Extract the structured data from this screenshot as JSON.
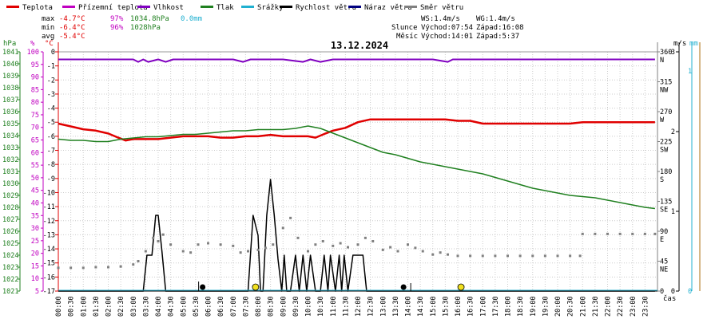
{
  "title": "13.12.2024",
  "legend": [
    {
      "label": "Teplota",
      "color": "#e00000"
    },
    {
      "label": "Přízemní teplota",
      "color": "#c000c0"
    },
    {
      "label": "Vlhkost",
      "color": "#8000c0"
    },
    {
      "label": "Tlak",
      "color": "#208020"
    },
    {
      "label": "Srážky",
      "color": "#20b0d0"
    },
    {
      "label": "Rychlost větru",
      "color": "#000000"
    },
    {
      "label": "Náraz větru",
      "color": "#000080"
    },
    {
      "label": "Směr větru",
      "color": "#808080"
    }
  ],
  "stats": {
    "max": {
      "label": "max",
      "temp": "-4.7°C",
      "hum": "97%",
      "press": "1034.8hPa",
      "rain": "0.0mm"
    },
    "min": {
      "label": "min",
      "temp": "-6.4°C",
      "hum": "96%",
      "press": "1028hPa"
    },
    "avg": {
      "label": "avg",
      "temp": "-5.4°C"
    }
  },
  "info": {
    "ws": "WS:1.4m/s",
    "wg": "WG:1.4m/s",
    "sun_label": "Slunce",
    "sunrise": "Východ:07:54",
    "sunset": "Západ:16:08",
    "moon_label": "Měsíc",
    "moonrise": "Východ:14:01",
    "moonset": "Západ:5:37"
  },
  "axis_units": {
    "hpa": "hPa",
    "pct": "%",
    "degc": "°C",
    "ms": "m/s",
    "mm": "mm",
    "xlabel": "čas"
  },
  "colors": {
    "temp": "#e00000",
    "hum": "#8000c0",
    "press": "#208020",
    "wind": "#000000",
    "dir": "#808080",
    "pressAxis": "#208020",
    "humAxis": "#c000c0",
    "tempAxis": "#e00000",
    "rain": "#20b0d0",
    "gust": "#000080",
    "tan": "#c8a060"
  },
  "chart_data": {
    "type": "line",
    "x_unit": "hour",
    "temp_ticks": [
      "0",
      "-1",
      "-2",
      "-3",
      "-4",
      "-5",
      "-6",
      "-7",
      "-8",
      "-9",
      "-10",
      "-11",
      "-12",
      "-13",
      "-14",
      "-15",
      "-16",
      "-17"
    ],
    "hum_ticks": [
      "100",
      "95",
      "90",
      "85",
      "80",
      "75",
      "70",
      "65",
      "60",
      "55",
      "50",
      "45",
      "40",
      "35",
      "30",
      "25",
      "20",
      "15",
      "10",
      "5"
    ],
    "press_ticks": [
      "1041",
      "1040",
      "1039",
      "1038",
      "1037",
      "1036",
      "1035",
      "1034",
      "1033",
      "1032",
      "1031",
      "1030",
      "1029",
      "1028",
      "1027",
      "1026",
      "1025",
      "1024",
      "1023",
      "1022",
      "1021"
    ],
    "dir_ticks": [
      {
        "deg": "360",
        "label": "N",
        "v": 360
      },
      {
        "deg": "315",
        "label": "NW",
        "v": 315
      },
      {
        "deg": "270",
        "label": "W",
        "v": 270
      },
      {
        "deg": "225",
        "label": "SW",
        "v": 225
      },
      {
        "deg": "180",
        "label": "S",
        "v": 180
      },
      {
        "deg": "135",
        "label": "SE",
        "v": 135
      },
      {
        "deg": "90",
        "label": "E",
        "v": 90
      },
      {
        "deg": "45",
        "label": "NE",
        "v": 45
      },
      {
        "deg": "0",
        "label": "",
        "v": 0
      }
    ],
    "ms_ticks": [
      {
        "label": "3",
        "v": 3
      },
      {
        "label": "2",
        "v": 2
      },
      {
        "label": "1",
        "v": 1
      },
      {
        "label": "0",
        "v": 0
      }
    ],
    "mm_ticks": [
      {
        "label": "1",
        "v": 1
      },
      {
        "label": "0",
        "v": 0
      }
    ],
    "x_tick_labels": [
      "00:00",
      "00:30",
      "01:00",
      "01:30",
      "02:00",
      "02:30",
      "03:00",
      "03:30",
      "04:00",
      "04:30",
      "05:00",
      "05:30",
      "06:00",
      "06:30",
      "07:00",
      "07:30",
      "08:00",
      "08:30",
      "09:00",
      "09:30",
      "10:00",
      "10:30",
      "11:00",
      "11:30",
      "12:00",
      "12:30",
      "13:00",
      "13:30",
      "14:00",
      "14:30",
      "15:00",
      "15:30",
      "16:00",
      "16:30",
      "17:00",
      "17:30",
      "18:00",
      "18:30",
      "19:00",
      "19:30",
      "20:00",
      "20:30",
      "21:00",
      "21:30",
      "22:00",
      "22:30",
      "23:00",
      "23:30"
    ],
    "series": [
      {
        "name": "Teplota",
        "key": "temp",
        "x": [
          0,
          0.5,
          1,
          1.5,
          2,
          2.4,
          2.7,
          3,
          3.5,
          4,
          4.5,
          5,
          5.5,
          6,
          6.5,
          7,
          7.5,
          8,
          8.5,
          9,
          9.5,
          10,
          10.3,
          10.7,
          11,
          11.5,
          12,
          12.5,
          13,
          13.5,
          14,
          14.5,
          15,
          15.5,
          16,
          16.5,
          17,
          17.5,
          18,
          18.5,
          19,
          19.5,
          20,
          20.5,
          21,
          21.5,
          22,
          22.5,
          23,
          23.5,
          23.9
        ],
        "y": [
          -5.1,
          -5.3,
          -5.5,
          -5.6,
          -5.8,
          -6.1,
          -6.3,
          -6.2,
          -6.2,
          -6.2,
          -6.1,
          -6.0,
          -6.0,
          -6.0,
          -6.1,
          -6.1,
          -6.0,
          -6.0,
          -5.9,
          -6.0,
          -6.0,
          -6.0,
          -6.1,
          -5.8,
          -5.6,
          -5.4,
          -5.0,
          -4.8,
          -4.8,
          -4.8,
          -4.8,
          -4.8,
          -4.8,
          -4.8,
          -4.9,
          -4.9,
          -5.1,
          -5.1,
          -5.1,
          -5.1,
          -5.1,
          -5.1,
          -5.1,
          -5.1,
          -5.0,
          -5.0,
          -5.0,
          -5.0,
          -5.0,
          -5.0,
          -5.0
        ]
      },
      {
        "name": "Vlhkost",
        "key": "hum",
        "x": [
          0,
          1,
          2,
          3,
          3.2,
          3.4,
          3.6,
          4,
          4.3,
          4.6,
          5,
          6,
          7,
          7.4,
          7.7,
          8,
          9,
          9.8,
          10.1,
          10.5,
          11,
          12,
          13,
          14,
          15,
          15.6,
          15.8,
          16,
          17,
          18,
          19,
          20,
          21,
          22,
          23,
          23.9
        ],
        "y": [
          97,
          97,
          97,
          97,
          96,
          97,
          96,
          97,
          96,
          97,
          97,
          97,
          97,
          96,
          97,
          97,
          97,
          96,
          97,
          96,
          97,
          97,
          97,
          97,
          97,
          96,
          97,
          97,
          97,
          97,
          97,
          97,
          97,
          97,
          97,
          97
        ]
      },
      {
        "name": "Tlak",
        "key": "press",
        "x": [
          0,
          0.5,
          1,
          1.5,
          2,
          2.5,
          3,
          3.5,
          4,
          4.5,
          5,
          5.5,
          6,
          6.5,
          7,
          7.5,
          8,
          8.5,
          9,
          9.5,
          10,
          10.5,
          11,
          11.5,
          12,
          12.5,
          13,
          13.5,
          14,
          14.5,
          15,
          15.5,
          16,
          16.5,
          17,
          17.5,
          18,
          18.5,
          19,
          19.5,
          20,
          20.5,
          21,
          21.5,
          22,
          22.5,
          23,
          23.5,
          23.9
        ],
        "y": [
          1033.7,
          1033.6,
          1033.6,
          1033.5,
          1033.5,
          1033.7,
          1033.8,
          1033.9,
          1033.9,
          1034.0,
          1034.1,
          1034.1,
          1034.2,
          1034.3,
          1034.4,
          1034.4,
          1034.5,
          1034.5,
          1034.5,
          1034.6,
          1034.8,
          1034.6,
          1034.2,
          1033.8,
          1033.4,
          1033.0,
          1032.6,
          1032.4,
          1032.1,
          1031.8,
          1031.6,
          1031.4,
          1031.2,
          1031.0,
          1030.8,
          1030.5,
          1030.2,
          1029.9,
          1029.6,
          1029.4,
          1029.2,
          1029.0,
          1028.9,
          1028.8,
          1028.6,
          1028.4,
          1028.2,
          1028.0,
          1027.9
        ]
      },
      {
        "name": "Rychlost větru",
        "key": "wind",
        "x": [
          0,
          3.4,
          3.55,
          3.75,
          3.9,
          4.0,
          4.15,
          4.3,
          4.45,
          4.55,
          7.6,
          7.8,
          8.0,
          8.1,
          8.2,
          8.35,
          8.5,
          8.65,
          8.8,
          8.95,
          9.05,
          9.15,
          9.3,
          9.5,
          9.65,
          9.8,
          9.95,
          10.1,
          10.3,
          10.5,
          10.65,
          10.8,
          10.9,
          11.1,
          11.25,
          11.35,
          11.45,
          11.6,
          11.8,
          12.0,
          12.2,
          12.35,
          12.5,
          23.9
        ],
        "y": [
          0,
          0,
          0.45,
          0.45,
          0.95,
          0.95,
          0.5,
          0,
          0,
          0,
          0,
          0.95,
          0.7,
          0,
          0,
          0.95,
          1.4,
          0.95,
          0.4,
          0,
          0.45,
          0,
          0,
          0.45,
          0,
          0.45,
          0,
          0.45,
          0,
          0,
          0.45,
          0,
          0.45,
          0,
          0.45,
          0,
          0.45,
          0,
          0.45,
          0.45,
          0.45,
          0,
          0,
          0
        ]
      },
      {
        "name": "Směr větru",
        "key": "dir",
        "x": [
          0,
          0.5,
          1,
          1.5,
          2,
          2.5,
          3,
          3.2,
          3.5,
          3.8,
          4.0,
          4.2,
          4.5,
          5,
          5.3,
          5.6,
          6,
          6.5,
          7,
          7.3,
          7.6,
          8,
          8.3,
          8.6,
          9,
          9.3,
          9.6,
          10,
          10.3,
          10.6,
          11,
          11.3,
          11.6,
          12,
          12.3,
          12.6,
          13,
          13.3,
          13.6,
          14,
          14.3,
          14.6,
          15,
          15.3,
          15.6,
          16,
          16.5,
          17,
          17.5,
          18,
          18.5,
          19,
          19.5,
          20,
          20.5,
          20.9,
          21.0,
          21.5,
          22,
          22.5,
          23,
          23.5,
          23.9
        ],
        "y": [
          35,
          35,
          35,
          36,
          36,
          37,
          40,
          45,
          60,
          80,
          75,
          85,
          70,
          60,
          58,
          70,
          72,
          70,
          68,
          58,
          60,
          62,
          65,
          70,
          95,
          110,
          80,
          60,
          70,
          75,
          68,
          72,
          66,
          70,
          80,
          75,
          62,
          66,
          60,
          70,
          65,
          60,
          55,
          58,
          55,
          53,
          53,
          53,
          53,
          53,
          53,
          53,
          53,
          53,
          53,
          53,
          86,
          86,
          86,
          86,
          86,
          86,
          86
        ]
      }
    ],
    "markers": [
      {
        "name": "moonrise-marker",
        "x": 14.02,
        "color": "#000000"
      },
      {
        "name": "sunrise-marker",
        "x": 7.9,
        "color": "#f0e020"
      },
      {
        "name": "sunset-marker",
        "x": 16.13,
        "color": "#f0e020"
      },
      {
        "name": "moonset-marker",
        "x": 5.62,
        "color": "#000000"
      }
    ]
  }
}
